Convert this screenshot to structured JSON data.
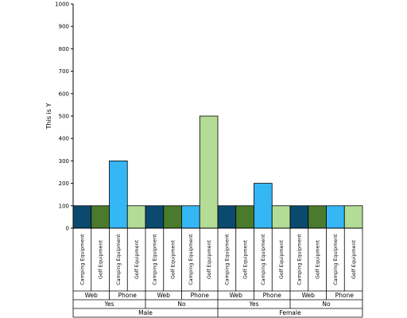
{
  "chart_data": {
    "type": "bar",
    "ylabel": "This is Y",
    "ylim": [
      0,
      1000
    ],
    "yticks": [
      0,
      100,
      200,
      300,
      400,
      500,
      600,
      700,
      800,
      900,
      1000
    ],
    "grid": false,
    "legend": "none",
    "levels": {
      "product": [
        "Camping Equipment",
        "Golf Equipment"
      ],
      "channel": [
        "Web",
        "Phone"
      ],
      "flag": [
        "Yes",
        "No"
      ],
      "gender": [
        "Male",
        "Female"
      ]
    },
    "categories": [
      "Camping Equipment",
      "Golf Equipment",
      "Camping Equipment",
      "Golf Equipment",
      "Camping Equipment",
      "Golf Equipment",
      "Camping Equipment",
      "Golf Equipment",
      "Camping Equipment",
      "Golf Equipment",
      "Camping Equipment",
      "Golf Equipment",
      "Camping Equipment",
      "Golf Equipment",
      "Camping Equipment",
      "Golf Equipment"
    ],
    "values": [
      100,
      100,
      300,
      100,
      100,
      100,
      100,
      500,
      100,
      100,
      200,
      100,
      100,
      100,
      100,
      100
    ],
    "colors": {
      "Web|Camping Equipment": "#0b4a6e",
      "Web|Golf Equipment": "#4a7a2b",
      "Phone|Camping Equipment": "#35b6f5",
      "Phone|Golf Equipment": "#b3dc96"
    }
  }
}
